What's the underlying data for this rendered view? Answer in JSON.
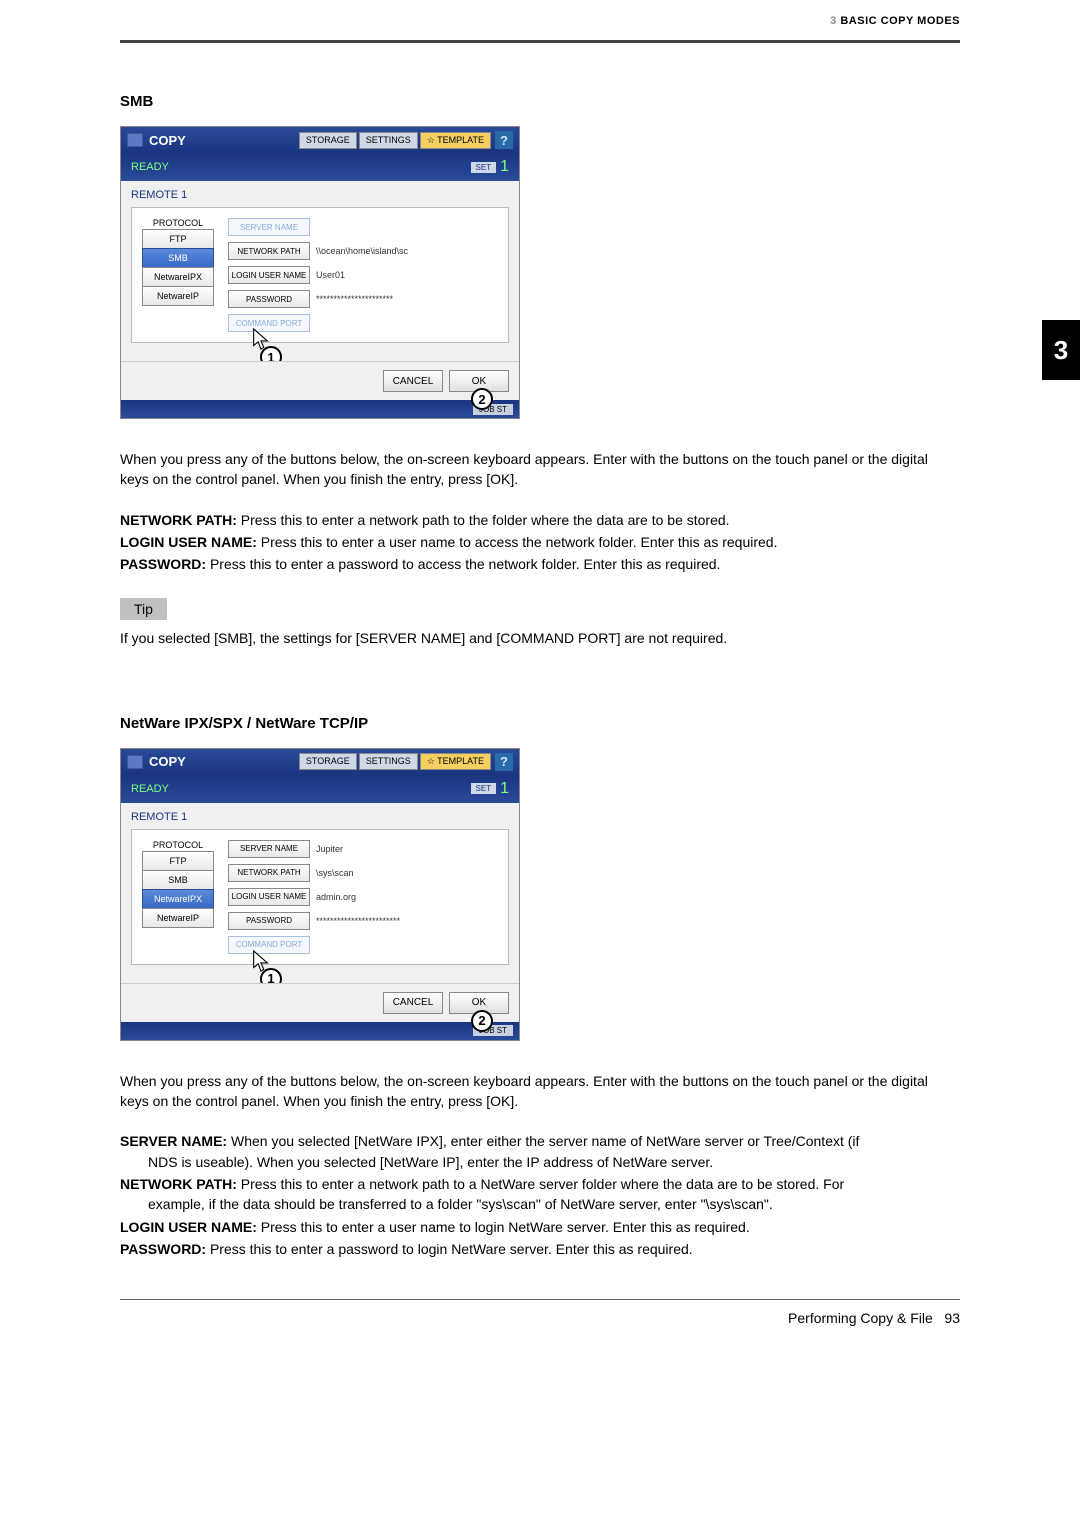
{
  "header": {
    "light": "3 ",
    "bold": "BASIC COPY MODES"
  },
  "sideTab": "3",
  "section1": {
    "title": "SMB",
    "screenshot": {
      "headerTitle": "COPY",
      "tabs": {
        "storage": "STORAGE",
        "settings": "SETTINGS",
        "template": "TEMPLATE"
      },
      "help": "?",
      "status": "READY",
      "set": "SET",
      "count": "1",
      "remote": "REMOTE 1",
      "protoLabel": "PROTOCOL",
      "protos": {
        "ftp": "FTP",
        "smb": "SMB",
        "nwipx": "NetwareIPX",
        "nwip": "NetwareIP"
      },
      "activeProto": "smb",
      "fields": {
        "serverName": {
          "label": "SERVER NAME",
          "value": "",
          "disabled": true
        },
        "networkPath": {
          "label": "NETWORK PATH",
          "value": "\\\\ocean\\home\\island\\sc",
          "disabled": false
        },
        "loginUser": {
          "label": "LOGIN USER NAME",
          "value": "User01",
          "disabled": false
        },
        "password": {
          "label": "PASSWORD",
          "value": "**********************",
          "disabled": false
        },
        "commandPort": {
          "label": "COMMAND PORT",
          "value": "",
          "disabled": true
        }
      },
      "cancel": "CANCEL",
      "ok": "OK",
      "job": "JOB ST",
      "callout1": "1",
      "callout2": "2"
    },
    "bodyText": "When you press any of the buttons below, the on-screen keyboard appears. Enter with the buttons on the touch panel or the digital keys on the control panel. When you finish the entry, press [OK].",
    "defs": [
      {
        "label": "NETWORK PATH:",
        "text": " Press this to enter a network path to the folder where the data are to be stored."
      },
      {
        "label": "LOGIN USER NAME:",
        "text": " Press this to enter a user name to access the network folder. Enter this as required."
      },
      {
        "label": "PASSWORD:",
        "text": " Press this to enter a password to access the network folder. Enter this as required."
      }
    ],
    "tip": {
      "label": "Tip",
      "text": "If you selected [SMB], the settings for [SERVER NAME] and [COMMAND PORT] are not required."
    }
  },
  "section2": {
    "title": "NetWare IPX/SPX / NetWare TCP/IP",
    "screenshot": {
      "headerTitle": "COPY",
      "tabs": {
        "storage": "STORAGE",
        "settings": "SETTINGS",
        "template": "TEMPLATE"
      },
      "help": "?",
      "status": "READY",
      "set": "SET",
      "count": "1",
      "remote": "REMOTE 1",
      "protoLabel": "PROTOCOL",
      "protos": {
        "ftp": "FTP",
        "smb": "SMB",
        "nwipx": "NetwareIPX",
        "nwip": "NetwareIP"
      },
      "activeProto": "nwipx",
      "fields": {
        "serverName": {
          "label": "SERVER NAME",
          "value": "Jupiter",
          "disabled": false
        },
        "networkPath": {
          "label": "NETWORK PATH",
          "value": "\\sys\\scan",
          "disabled": false
        },
        "loginUser": {
          "label": "LOGIN USER NAME",
          "value": "admin.org",
          "disabled": false
        },
        "password": {
          "label": "PASSWORD",
          "value": "************************",
          "disabled": false
        },
        "commandPort": {
          "label": "COMMAND PORT",
          "value": "",
          "disabled": true
        }
      },
      "cancel": "CANCEL",
      "ok": "OK",
      "job": "JOB ST",
      "callout1": "1",
      "callout2": "2"
    },
    "bodyText": "When you press any of the buttons below, the on-screen keyboard appears. Enter with the buttons on the touch panel or the digital keys on the control panel. When you finish the entry, press [OK].",
    "defs": [
      {
        "label": "SERVER NAME:",
        "text": " When you selected [NetWare IPX], enter either the server name of NetWare server or Tree/Context (if",
        "cont": "NDS is useable). When you selected [NetWare IP], enter the IP address of NetWare server."
      },
      {
        "label": "NETWORK PATH:",
        "text": " Press this to enter a network path to a NetWare server folder where the data are to be stored. For",
        "cont": "example, if the data should be transferred to a folder \"sys\\scan\" of NetWare server, enter \"\\sys\\scan\"."
      },
      {
        "label": "LOGIN USER NAME:",
        "text": " Press this to enter a user name to login NetWare server. Enter this as required."
      },
      {
        "label": "PASSWORD:",
        "text": " Press this to enter a password to login NetWare server. Enter this as required."
      }
    ]
  },
  "footer": {
    "title": "Performing Copy & File",
    "page": "93"
  }
}
